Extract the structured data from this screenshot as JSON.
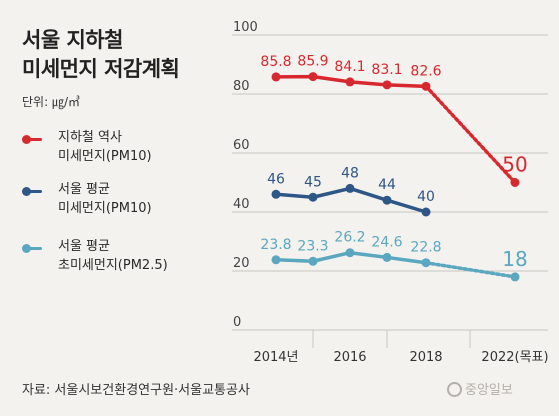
{
  "title_lines": [
    "서울 지하철",
    "미세먼지 저감계획"
  ],
  "unit": "단위: ㎍/㎥",
  "source": "자료: 서울시보건환경연구원·서울교통공사",
  "logo_text": "중앙일보",
  "legend": [
    {
      "lines": [
        "지하철 역사",
        "미세먼지(PM10)"
      ],
      "color": "#d7282f"
    },
    {
      "lines": [
        "서울 평균",
        "미세먼지(PM10)"
      ],
      "color": "#2e5687"
    },
    {
      "lines": [
        "서울 평균",
        "초미세먼지(PM2.5)"
      ],
      "color": "#5aa7bf"
    }
  ],
  "chart_data": {
    "type": "line",
    "x_ticks": [
      "2014년",
      "2016",
      "2018",
      "2022(목표)"
    ],
    "y_ticks": [
      "100",
      "80",
      "60",
      "40",
      "20",
      "0"
    ],
    "ylim": [
      0,
      100
    ],
    "grid": true,
    "series": [
      {
        "name": "지하철 역사 미세먼지(PM10)",
        "color": "#d7282f",
        "actual": [
          {
            "x": 2014,
            "y": 85.8,
            "label": "85.8"
          },
          {
            "x": 2015,
            "y": 85.9,
            "label": "85.9"
          },
          {
            "x": 2016,
            "y": 84.1,
            "label": "84.1"
          },
          {
            "x": 2017,
            "y": 83.1,
            "label": "83.1"
          },
          {
            "x": 2018,
            "y": 82.6,
            "label": "82.6"
          }
        ],
        "target": {
          "x": 2022,
          "y": 50,
          "label": "50"
        }
      },
      {
        "name": "서울 평균 미세먼지(PM10)",
        "color": "#2e5687",
        "actual": [
          {
            "x": 2014,
            "y": 46,
            "label": "46"
          },
          {
            "x": 2015,
            "y": 45,
            "label": "45"
          },
          {
            "x": 2016,
            "y": 48,
            "label": "48"
          },
          {
            "x": 2017,
            "y": 44,
            "label": "44"
          },
          {
            "x": 2018,
            "y": 40,
            "label": "40"
          }
        ]
      },
      {
        "name": "서울 평균 초미세먼지(PM2.5)",
        "color": "#5aa7bf",
        "actual": [
          {
            "x": 2014,
            "y": 23.8,
            "label": "23.8"
          },
          {
            "x": 2015,
            "y": 23.3,
            "label": "23.3"
          },
          {
            "x": 2016,
            "y": 26.2,
            "label": "26.2"
          },
          {
            "x": 2017,
            "y": 24.6,
            "label": "24.6"
          },
          {
            "x": 2018,
            "y": 22.8,
            "label": "22.8"
          }
        ],
        "target": {
          "x": 2022,
          "y": 18,
          "label": "18"
        }
      }
    ]
  }
}
